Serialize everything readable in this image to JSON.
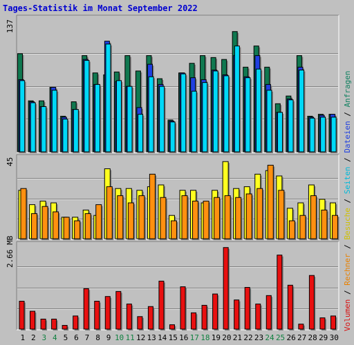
{
  "title": "Tages-Statistik im Monat September 2022",
  "colors": {
    "background": "#c0c0c0",
    "title": "#0000d0",
    "anfragen": "#107850",
    "dateien": "#2040e0",
    "seiten": "#00d8f8",
    "besuche": "#ffff20",
    "rechner": "#ff9010",
    "volumen": "#e81010",
    "weekend_label": "#108040",
    "weekday_label": "#000000"
  },
  "legend": {
    "parts": [
      {
        "text": "Volumen",
        "color": "#d81010"
      },
      {
        "text": " / ",
        "color": "#000000"
      },
      {
        "text": "Rechner",
        "color": "#e88000"
      },
      {
        "text": " / ",
        "color": "#000000"
      },
      {
        "text": "Besuche",
        "color": "#d0c000"
      },
      {
        "text": " / ",
        "color": "#000000"
      },
      {
        "text": "Seiten",
        "color": "#00b8d8"
      },
      {
        "text": " / ",
        "color": "#000000"
      },
      {
        "text": "Dateien",
        "color": "#2040e0"
      },
      {
        "text": " / ",
        "color": "#000000"
      },
      {
        "text": "Anfragen",
        "color": "#108060"
      }
    ]
  },
  "chart_data": [
    {
      "type": "bar",
      "panel": "requests",
      "ymax_label": "137",
      "ymax": 137,
      "categories": [
        "1",
        "2",
        "3",
        "4",
        "5",
        "6",
        "7",
        "8",
        "9",
        "10",
        "11",
        "12",
        "13",
        "14",
        "15",
        "16",
        "17",
        "18",
        "19",
        "20",
        "21",
        "22",
        "23",
        "24",
        "25",
        "26",
        "27",
        "28",
        "29",
        "30"
      ],
      "weekend_days": [
        "3",
        "4",
        "10",
        "11",
        "17",
        "18",
        "24",
        "25"
      ],
      "series": [
        {
          "name": "Anfragen",
          "values": [
            102,
            53,
            53,
            67,
            37,
            52,
            100,
            82,
            80,
            83,
            100,
            84,
            100,
            76,
            33,
            82,
            92,
            100,
            98,
            96,
            125,
            88,
            110,
            88,
            50,
            58,
            100,
            37,
            39,
            39
          ]
        },
        {
          "name": "Dateien",
          "values": [
            75,
            52,
            47,
            67,
            36,
            44,
            96,
            70,
            115,
            73,
            68,
            46,
            91,
            70,
            32,
            82,
            77,
            75,
            85,
            80,
            100,
            78,
            100,
            70,
            41,
            55,
            88,
            36,
            38,
            39
          ]
        },
        {
          "name": "Seiten",
          "values": [
            74,
            51,
            47,
            64,
            34,
            44,
            95,
            70,
            112,
            74,
            68,
            39,
            78,
            68,
            31,
            81,
            63,
            72,
            84,
            79,
            110,
            77,
            86,
            64,
            41,
            54,
            85,
            35,
            36,
            36
          ]
        }
      ]
    },
    {
      "type": "bar",
      "panel": "visits",
      "ymax_label": "45",
      "ymax": 45,
      "series": [
        {
          "name": "Besuche",
          "values": [
            27,
            19,
            21,
            20,
            12,
            12,
            16,
            13,
            39,
            28,
            28,
            27,
            29,
            30,
            13,
            27,
            27,
            20,
            27,
            43,
            28,
            29,
            36,
            38,
            35,
            17,
            20,
            30,
            22,
            20
          ]
        },
        {
          "name": "Rechner",
          "values": [
            28,
            14,
            18,
            15,
            12,
            10,
            14,
            19,
            29,
            24,
            20,
            24,
            36,
            23,
            10,
            24,
            21,
            21,
            23,
            24,
            23,
            25,
            28,
            41,
            27,
            10,
            13,
            24,
            16,
            13
          ]
        }
      ]
    },
    {
      "type": "bar",
      "panel": "volume",
      "ymax_label": "2.66 MB",
      "ymax": 2.66,
      "series": [
        {
          "name": "Volumen",
          "values": [
            0.89,
            0.57,
            0.32,
            0.32,
            0.12,
            0.42,
            1.29,
            0.89,
            1.04,
            1.2,
            0.8,
            0.4,
            0.72,
            1.53,
            0.14,
            1.35,
            0.52,
            0.76,
            1.12,
            2.6,
            0.93,
            1.33,
            0.8,
            1.07,
            2.36,
            1.4,
            0.16,
            1.71,
            0.36,
            0.42
          ]
        }
      ]
    }
  ]
}
